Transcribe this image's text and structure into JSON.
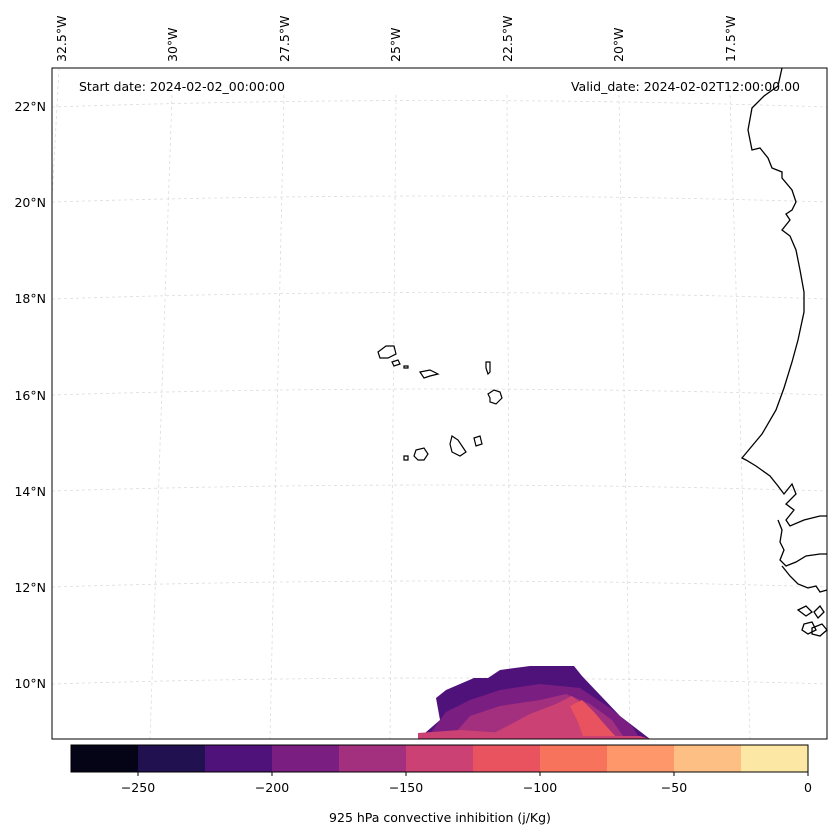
{
  "map": {
    "start_date": "Start date: 2024-02-02_00:00:00",
    "valid_date": "Valid_date: 2024-02-02T12:00:00.00",
    "lon_labels": [
      "32.5°W",
      "30°W",
      "27.5°W",
      "25°W",
      "22.5°W",
      "20°W",
      "17.5°W"
    ],
    "lat_labels": [
      "22°N",
      "20°N",
      "18°N",
      "16°N",
      "14°N",
      "12°N",
      "10°N"
    ],
    "colors": {
      "coast": "#000000",
      "grid": "#d9d9d9"
    }
  },
  "colorbar": {
    "label": "925 hPa convective inhibition (j/Kg)",
    "ticks": [
      "−250",
      "−200",
      "−150",
      "−100",
      "−50",
      "0"
    ],
    "levels": [
      -275,
      -250,
      -225,
      -200,
      -175,
      -150,
      -125,
      -100,
      -75,
      -50,
      -25,
      0
    ],
    "colors": [
      "#050417",
      "#221150",
      "#4f127b",
      "#7a1e82",
      "#a3307e",
      "#cc4173",
      "#e8535f",
      "#f8735c",
      "#fe9769",
      "#febf84",
      "#fde7a5"
    ]
  }
}
